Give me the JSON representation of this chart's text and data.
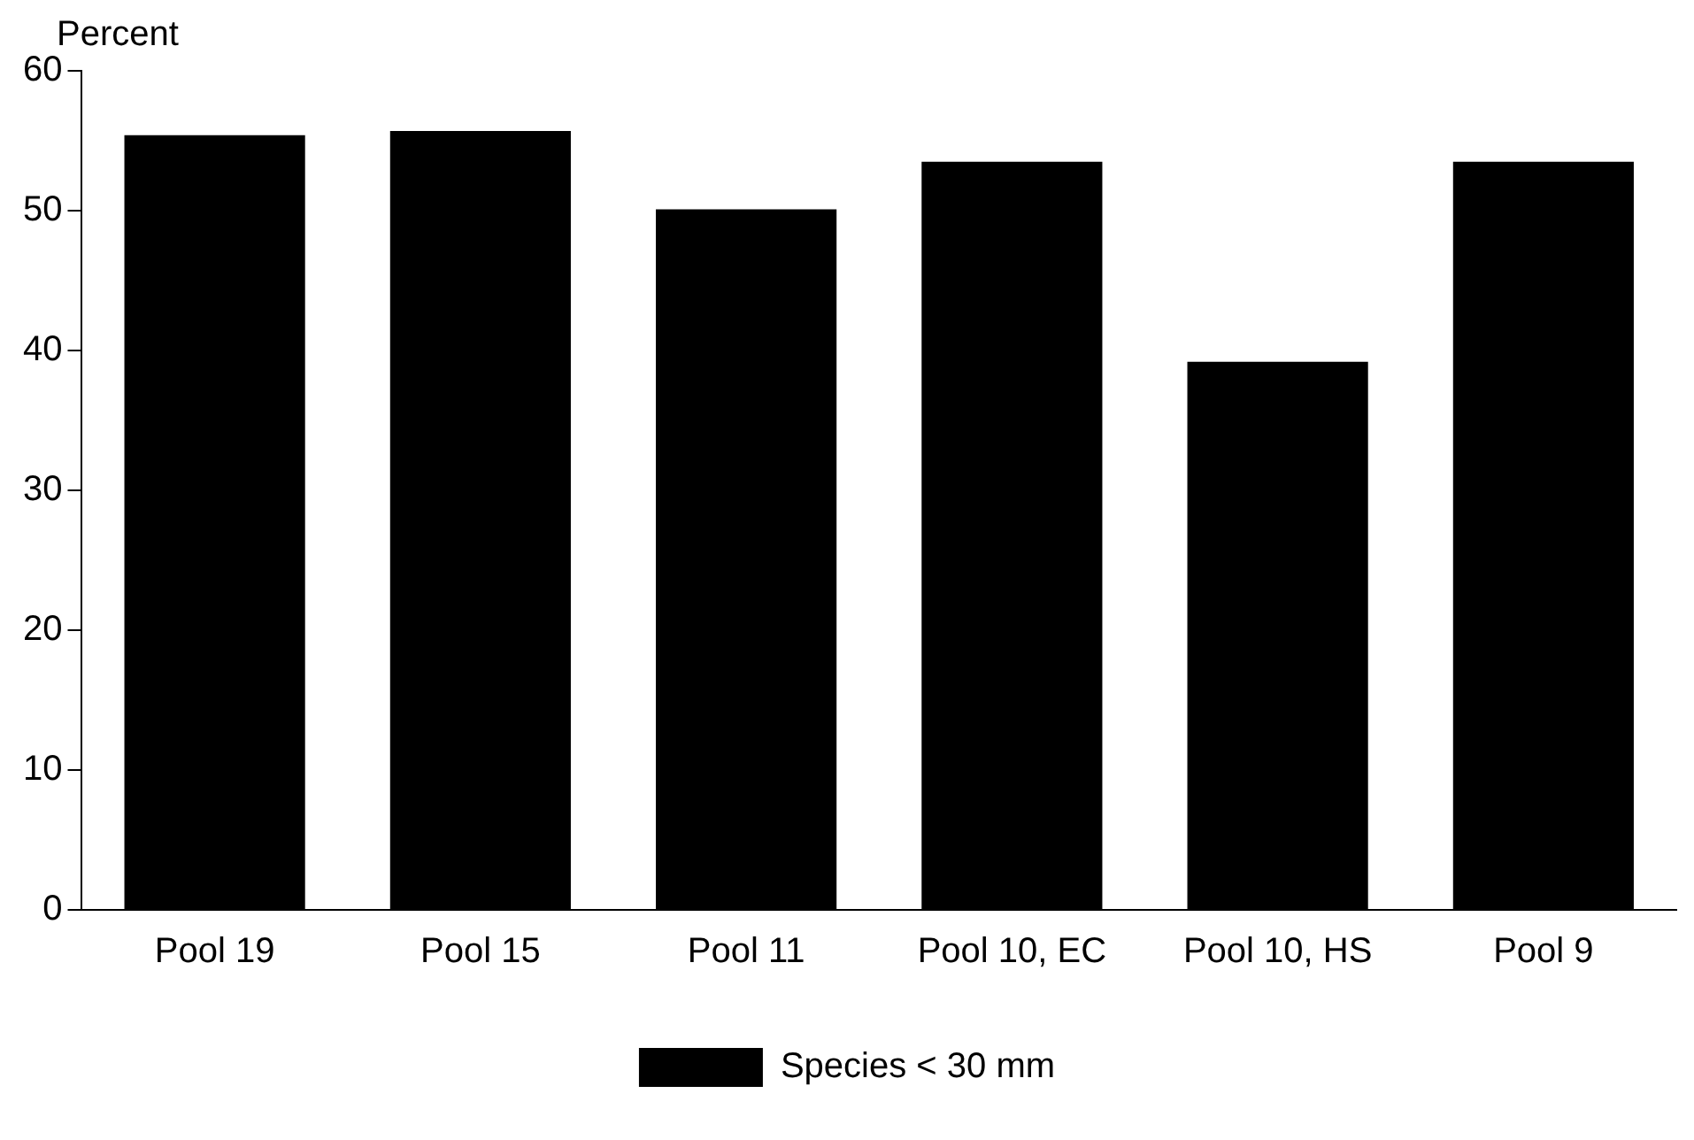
{
  "chart_data": {
    "type": "bar",
    "ylabel": "Percent",
    "categories": [
      "Pool 19",
      "Pool 15",
      "Pool 11",
      "Pool 10, EC",
      "Pool 10, HS",
      "Pool 9"
    ],
    "series": [
      {
        "name": "Species < 30 mm",
        "color": "#000000",
        "values": [
          55.4,
          55.7,
          50.1,
          53.5,
          39.2,
          53.5
        ]
      }
    ],
    "ylim": [
      0,
      60
    ],
    "yticks": [
      0,
      10,
      20,
      30,
      40,
      50,
      60
    ],
    "grid": false,
    "legend": "bottom"
  }
}
